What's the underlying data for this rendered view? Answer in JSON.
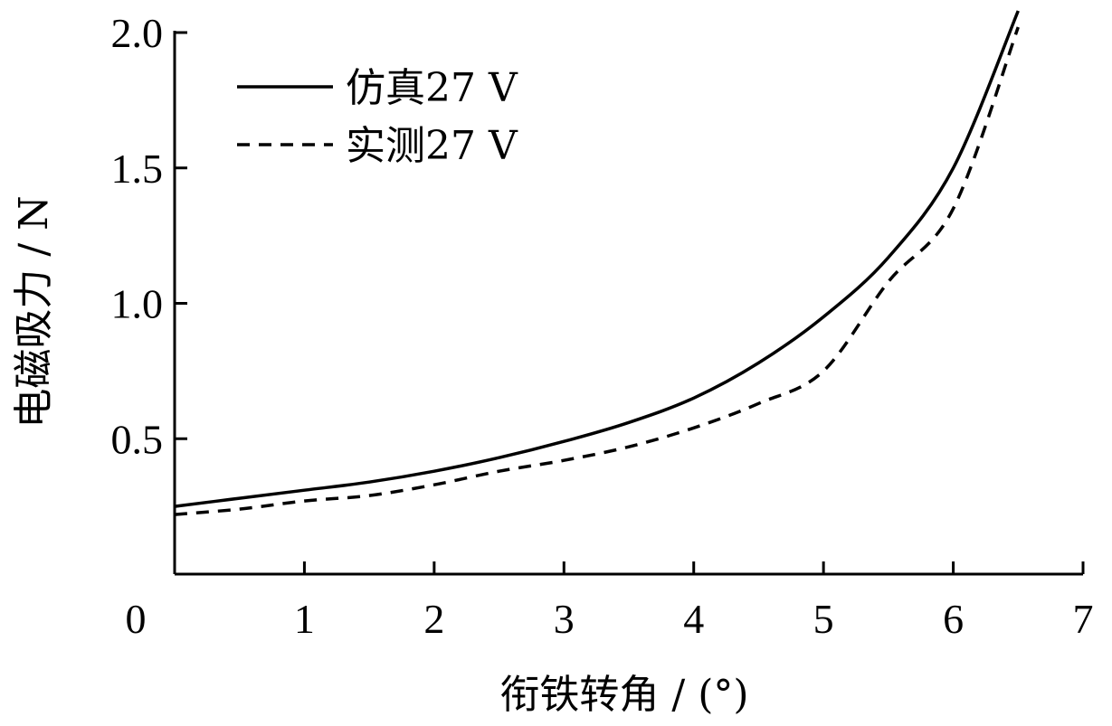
{
  "chart_data": {
    "type": "line",
    "title": "",
    "xlabel": "衔铁转角 / (°)",
    "ylabel": "电磁吸力 / N",
    "xlim": [
      0,
      7
    ],
    "ylim": [
      0,
      2.0
    ],
    "x_ticks": [
      0,
      1,
      2,
      3,
      4,
      5,
      6,
      7
    ],
    "y_ticks": [
      0.5,
      1.0,
      1.5,
      2.0
    ],
    "x_tick_labels": [
      "0",
      "1",
      "2",
      "3",
      "4",
      "5",
      "6",
      "7"
    ],
    "y_tick_labels": [
      "0.5",
      "1.0",
      "1.5",
      "2.0"
    ],
    "grid": false,
    "legend_position": "top-left",
    "series": [
      {
        "name": "仿真27 V",
        "style": "solid",
        "color": "#000000",
        "x": [
          0,
          0.5,
          1.0,
          1.5,
          2.0,
          2.5,
          3.0,
          3.5,
          4.0,
          4.5,
          5.0,
          5.5,
          6.0,
          6.5
        ],
        "y": [
          0.25,
          0.28,
          0.31,
          0.34,
          0.38,
          0.43,
          0.49,
          0.56,
          0.65,
          0.78,
          0.95,
          1.17,
          1.5,
          2.08
        ]
      },
      {
        "name": "实测27 V",
        "style": "dashed",
        "color": "#000000",
        "x": [
          0,
          0.5,
          1.0,
          1.5,
          2.0,
          2.5,
          3.0,
          3.5,
          4.0,
          4.5,
          5.0,
          5.5,
          6.0,
          6.5
        ],
        "y": [
          0.22,
          0.24,
          0.27,
          0.29,
          0.33,
          0.38,
          0.42,
          0.47,
          0.54,
          0.63,
          0.75,
          1.08,
          1.35,
          2.02
        ]
      }
    ]
  }
}
